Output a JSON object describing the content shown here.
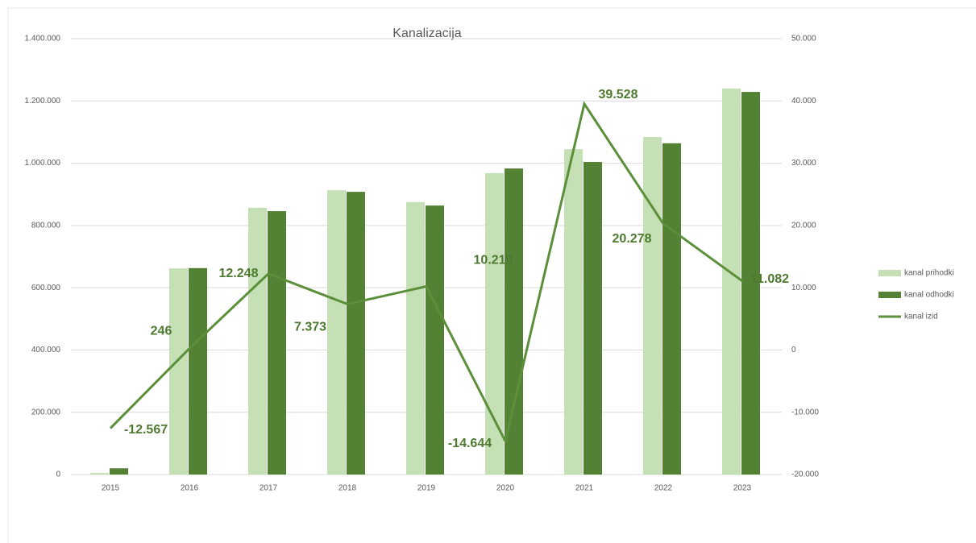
{
  "chart_data": {
    "type": "bar_line",
    "title": "Kanalizacija",
    "categories": [
      "2015",
      "2016",
      "2017",
      "2018",
      "2019",
      "2020",
      "2021",
      "2022",
      "2023"
    ],
    "series": [
      {
        "name": "kanal prihodki",
        "type": "bar",
        "color": "#c5e0b4",
        "values": [
          5000,
          662000,
          857000,
          913000,
          875000,
          968000,
          1045000,
          1084000,
          1240000
        ]
      },
      {
        "name": "kanal odhodki",
        "type": "bar",
        "color": "#548235",
        "values": [
          20000,
          663000,
          846000,
          908000,
          864000,
          983000,
          1004000,
          1064000,
          1229000
        ]
      },
      {
        "name": "kanal izid",
        "type": "line",
        "axis": "y2",
        "color": "#5b8f3a",
        "values": [
          -12567,
          246,
          12248,
          7373,
          10210,
          -14644,
          39528,
          20278,
          11082
        ],
        "value_labels": [
          "-12.567",
          "246",
          "12.248",
          "7.373",
          "10.210",
          "-14.644",
          "39.528",
          "20.278",
          "11.082"
        ]
      }
    ],
    "ylim": [
      0,
      1400000
    ],
    "yticks": [
      0,
      {
        "value": 200000,
        "label": "200.000"
      },
      {
        "value": 400000,
        "label": "400.000"
      },
      {
        "value": 600000,
        "label": "600.000"
      },
      {
        "value": 800000,
        "label": "800.000"
      },
      {
        "value": 1000000,
        "label": "1.000.000"
      },
      {
        "value": 1200000,
        "label": "1.200.000"
      },
      {
        "value": 1400000,
        "label": "1.400.000"
      }
    ],
    "y2lim": [
      -20000,
      50000
    ],
    "y2ticks": [
      {
        "value": -20000,
        "label": "-20.000"
      },
      {
        "value": -10000,
        "label": "-10.000"
      },
      0,
      {
        "value": 10000,
        "label": "10.000"
      },
      {
        "value": 20000,
        "label": "20.000"
      },
      {
        "value": 30000,
        "label": "30.000"
      },
      {
        "value": 40000,
        "label": "40.000"
      },
      {
        "value": 50000,
        "label": "50.000"
      }
    ],
    "grid": true,
    "legend": "right"
  }
}
